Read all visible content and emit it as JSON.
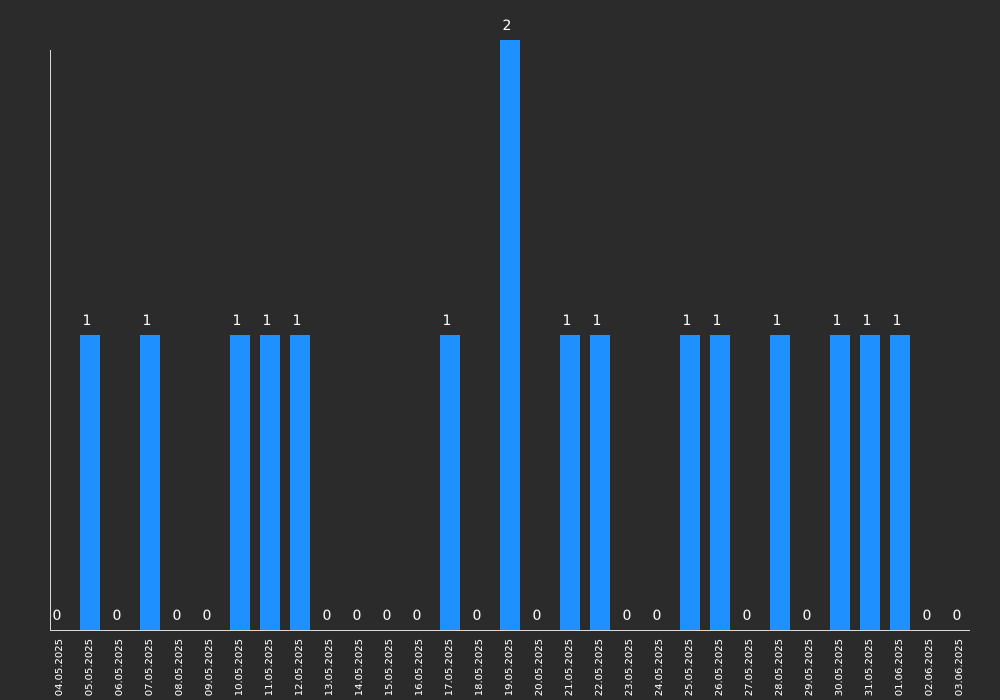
{
  "colors": {
    "background": "#2b2b2b",
    "bar": "#1e90ff",
    "axis": "#d9d9d9",
    "text": "#ffffff"
  },
  "chart_data": {
    "type": "bar",
    "title": "",
    "xlabel": "",
    "ylabel": "",
    "ylim": [
      0,
      2
    ],
    "grid": false,
    "legend": "none",
    "categories": [
      "04.05.2025",
      "05.05.2025",
      "06.05.2025",
      "07.05.2025",
      "08.05.2025",
      "09.05.2025",
      "10.05.2025",
      "11.05.2025",
      "12.05.2025",
      "13.05.2025",
      "14.05.2025",
      "15.05.2025",
      "16.05.2025",
      "17.05.2025",
      "18.05.2025",
      "19.05.2025",
      "20.05.2025",
      "21.05.2025",
      "22.05.2025",
      "23.05.2025",
      "24.05.2025",
      "25.05.2025",
      "26.05.2025",
      "27.05.2025",
      "28.05.2025",
      "29.05.2025",
      "30.05.2025",
      "31.05.2025",
      "01.06.2025",
      "02.06.2025",
      "03.06.2025"
    ],
    "values": [
      0,
      1,
      0,
      1,
      0,
      0,
      1,
      1,
      1,
      0,
      0,
      0,
      0,
      1,
      0,
      2,
      0,
      1,
      1,
      0,
      0,
      1,
      1,
      0,
      1,
      0,
      1,
      1,
      1,
      0,
      0
    ]
  }
}
